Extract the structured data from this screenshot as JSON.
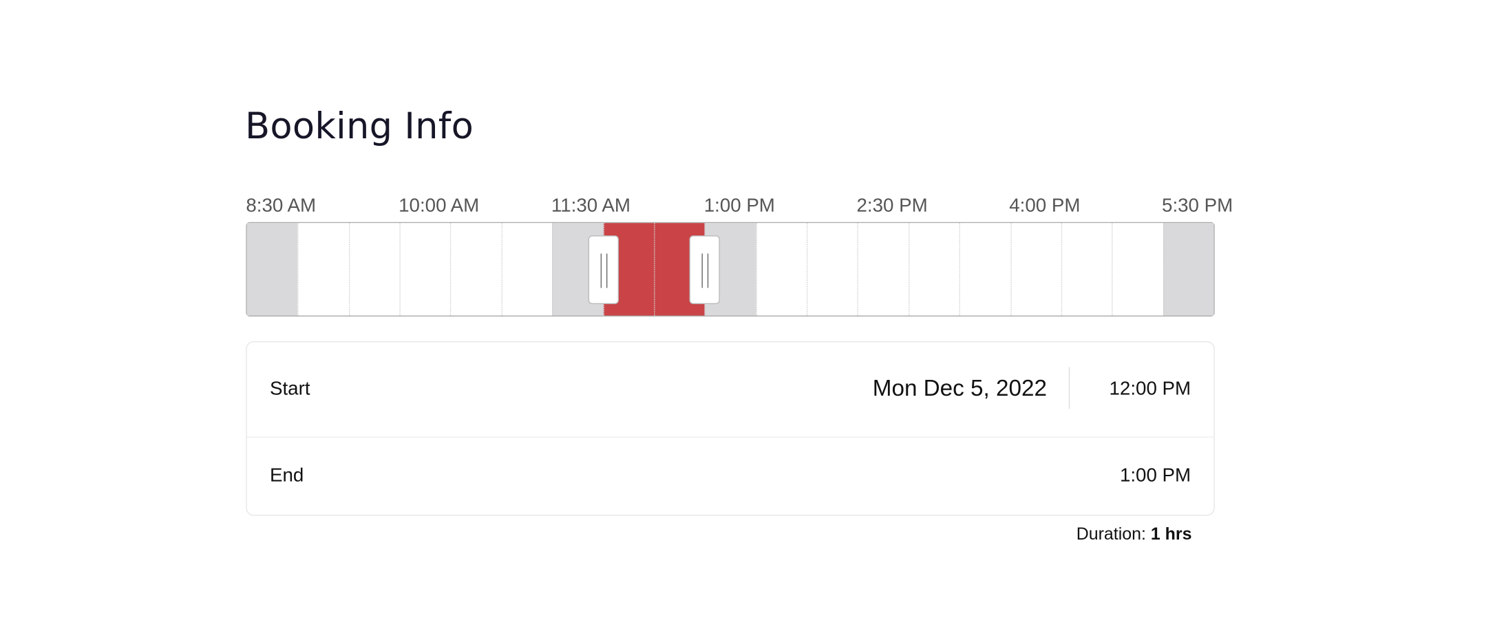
{
  "header": {
    "title": "Booking Info"
  },
  "timeline": {
    "labels": [
      "8:30 AM",
      "10:00 AM",
      "11:30 AM",
      "1:00 PM",
      "2:30 PM",
      "4:00 PM",
      "5:30 PM"
    ]
  },
  "details": {
    "start": {
      "label": "Start",
      "date": "Mon Dec 5, 2022",
      "time": "12:00 PM"
    },
    "end": {
      "label": "End",
      "time": "1:00 PM"
    },
    "duration": {
      "label": "Duration:",
      "value": "1 hrs"
    }
  }
}
